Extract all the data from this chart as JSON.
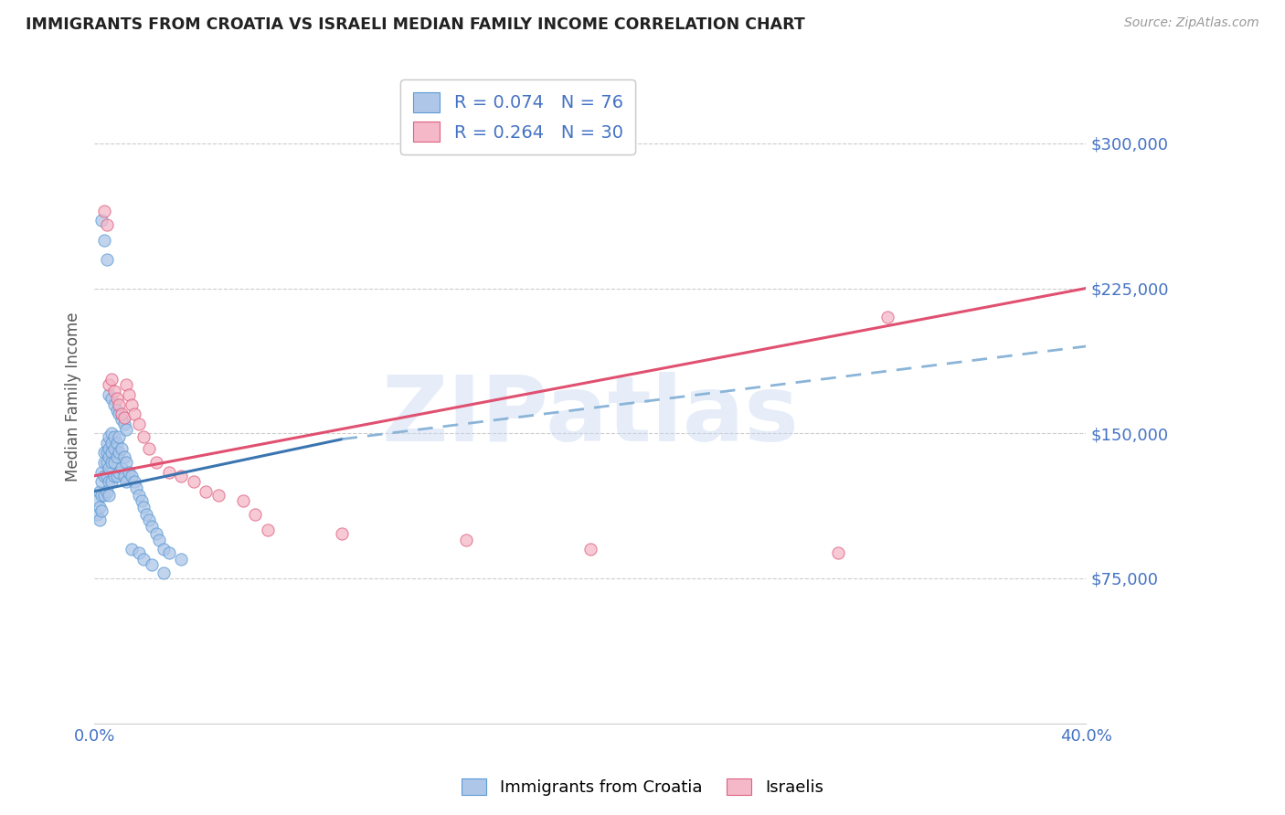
{
  "title": "IMMIGRANTS FROM CROATIA VS ISRAELI MEDIAN FAMILY INCOME CORRELATION CHART",
  "source": "Source: ZipAtlas.com",
  "ylabel": "Median Family Income",
  "xlim": [
    0.0,
    0.4
  ],
  "ylim": [
    0,
    337500
  ],
  "yticks": [
    75000,
    150000,
    225000,
    300000
  ],
  "xticks": [
    0.0,
    0.05,
    0.1,
    0.15,
    0.2,
    0.25,
    0.3,
    0.35,
    0.4
  ],
  "watermark": "ZIPatlas",
  "legend_R1": "R = 0.074",
  "legend_N1": "N = 76",
  "legend_R2": "R = 0.264",
  "legend_N2": "N = 30",
  "legend_label1": "Immigrants from Croatia",
  "legend_label2": "Israelis",
  "blue_fill": "#aec6e8",
  "blue_edge": "#5b9bd5",
  "pink_fill": "#f4b8c8",
  "pink_edge": "#e06080",
  "trend_blue_solid_color": "#3a75b0",
  "trend_blue_dash_color": "#8ab4d8",
  "trend_pink_color": "#e05070",
  "axis_label_color": "#4472c4",
  "title_color": "#222222",
  "blue_scatter_x": [
    0.001,
    0.001,
    0.002,
    0.002,
    0.002,
    0.003,
    0.003,
    0.003,
    0.003,
    0.004,
    0.004,
    0.004,
    0.004,
    0.005,
    0.005,
    0.005,
    0.005,
    0.005,
    0.006,
    0.006,
    0.006,
    0.006,
    0.006,
    0.006,
    0.007,
    0.007,
    0.007,
    0.007,
    0.007,
    0.008,
    0.008,
    0.008,
    0.008,
    0.009,
    0.009,
    0.009,
    0.01,
    0.01,
    0.01,
    0.011,
    0.011,
    0.012,
    0.012,
    0.013,
    0.013,
    0.014,
    0.015,
    0.016,
    0.017,
    0.018,
    0.019,
    0.02,
    0.021,
    0.022,
    0.023,
    0.025,
    0.026,
    0.028,
    0.03,
    0.035,
    0.003,
    0.004,
    0.005,
    0.006,
    0.007,
    0.008,
    0.009,
    0.01,
    0.011,
    0.012,
    0.013,
    0.015,
    0.018,
    0.02,
    0.023,
    0.028
  ],
  "blue_scatter_y": [
    115000,
    108000,
    120000,
    112000,
    105000,
    130000,
    125000,
    118000,
    110000,
    140000,
    135000,
    128000,
    118000,
    145000,
    140000,
    135000,
    128000,
    120000,
    148000,
    142000,
    138000,
    132000,
    125000,
    118000,
    150000,
    145000,
    140000,
    135000,
    125000,
    148000,
    142000,
    135000,
    128000,
    145000,
    138000,
    128000,
    148000,
    140000,
    130000,
    142000,
    132000,
    138000,
    128000,
    135000,
    125000,
    130000,
    128000,
    125000,
    122000,
    118000,
    115000,
    112000,
    108000,
    105000,
    102000,
    98000,
    95000,
    90000,
    88000,
    85000,
    260000,
    250000,
    240000,
    170000,
    168000,
    165000,
    162000,
    160000,
    157000,
    155000,
    152000,
    90000,
    88000,
    85000,
    82000,
    78000
  ],
  "pink_scatter_x": [
    0.004,
    0.005,
    0.006,
    0.007,
    0.008,
    0.009,
    0.01,
    0.011,
    0.012,
    0.013,
    0.014,
    0.015,
    0.016,
    0.018,
    0.02,
    0.022,
    0.025,
    0.03,
    0.035,
    0.04,
    0.045,
    0.05,
    0.06,
    0.065,
    0.07,
    0.1,
    0.15,
    0.2,
    0.3,
    0.32
  ],
  "pink_scatter_y": [
    265000,
    258000,
    175000,
    178000,
    172000,
    168000,
    165000,
    160000,
    158000,
    175000,
    170000,
    165000,
    160000,
    155000,
    148000,
    142000,
    135000,
    130000,
    128000,
    125000,
    120000,
    118000,
    115000,
    108000,
    100000,
    98000,
    95000,
    90000,
    88000,
    210000
  ],
  "blue_solid_trend_x": [
    0.0,
    0.1
  ],
  "blue_solid_trend_y": [
    120000,
    147000
  ],
  "blue_dash_trend_x": [
    0.1,
    0.4
  ],
  "blue_dash_trend_y": [
    147000,
    195000
  ],
  "pink_trend_x": [
    0.0,
    0.4
  ],
  "pink_trend_y": [
    128000,
    225000
  ]
}
